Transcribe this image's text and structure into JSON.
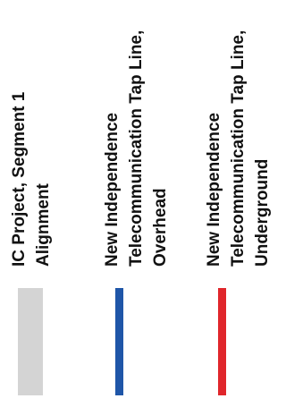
{
  "legend": {
    "items": [
      {
        "lines": [
          "IC Project, Segment 1",
          "Alignment"
        ],
        "color": "#d4d4d4"
      },
      {
        "lines": [
          "New Independence",
          "Telecommunication Tap Line,",
          "Overhead"
        ],
        "color": "#1f56a8"
      },
      {
        "lines": [
          "New Independence",
          "Telecommunication Tap Line,",
          "Underground"
        ],
        "color": "#e0262b"
      }
    ]
  }
}
